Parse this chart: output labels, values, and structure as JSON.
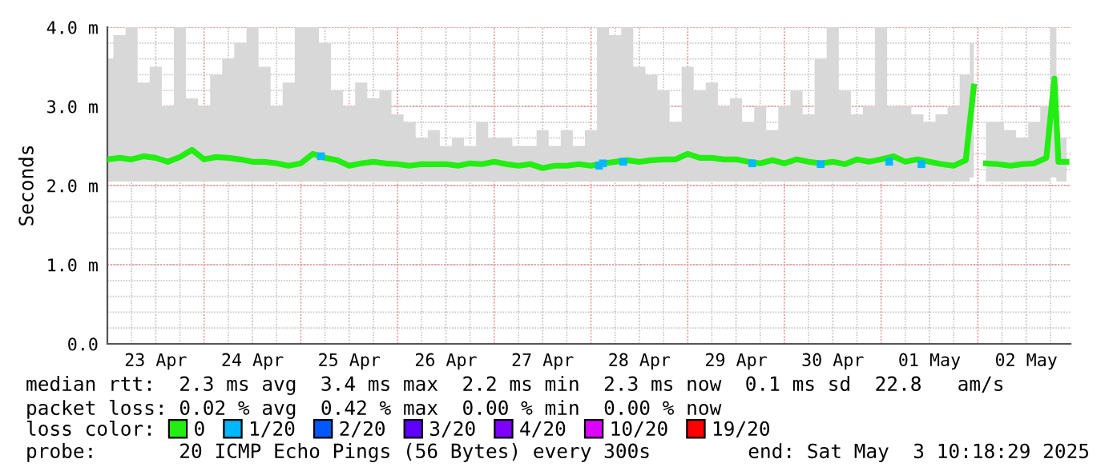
{
  "chart_data": {
    "type": "line",
    "ylabel": "Seconds",
    "legend_title": "loss color:",
    "legend": "bottom",
    "grid": true,
    "line_style": "solid",
    "marker": "none",
    "xlim": [
      "2025-04-23T00:00",
      "2025-05-02T23:00"
    ],
    "xticks": [
      {
        "value": "2025-04-23T00:00",
        "label": null
      },
      {
        "value": "2025-04-23T12:00",
        "label": "23 Apr"
      },
      {
        "value": "2025-04-24T00:00",
        "label": null
      },
      {
        "value": "2025-04-24T12:00",
        "label": "24 Apr"
      },
      {
        "value": "2025-04-25T00:00",
        "label": null
      },
      {
        "value": "2025-04-25T12:00",
        "label": "25 Apr"
      },
      {
        "value": "2025-04-26T00:00",
        "label": null
      },
      {
        "value": "2025-04-26T12:00",
        "label": "26 Apr"
      },
      {
        "value": "2025-04-27T00:00",
        "label": null
      },
      {
        "value": "2025-04-27T12:00",
        "label": "27 Apr"
      },
      {
        "value": "2025-04-28T00:00",
        "label": null
      },
      {
        "value": "2025-04-28T12:00",
        "label": "28 Apr"
      },
      {
        "value": "2025-04-29T00:00",
        "label": null
      },
      {
        "value": "2025-04-29T12:00",
        "label": "29 Apr"
      },
      {
        "value": "2025-04-30T00:00",
        "label": null
      },
      {
        "value": "2025-04-30T12:00",
        "label": "30 Apr"
      },
      {
        "value": "2025-05-01T00:00",
        "label": null
      },
      {
        "value": "2025-05-01T12:00",
        "label": "01 May"
      },
      {
        "value": "2025-05-02T00:00",
        "label": null
      },
      {
        "value": "2025-05-02T12:00",
        "label": "02 May"
      }
    ],
    "ylim": [
      0,
      4.0
    ],
    "yticks": [
      {
        "value": 0,
        "label": "0.0"
      },
      {
        "value": 1,
        "label": "1.0 m"
      },
      {
        "value": 2,
        "label": "2.0 m"
      },
      {
        "value": 3,
        "label": "3.0 m"
      },
      {
        "value": 4,
        "label": "4.0 m"
      }
    ],
    "series": [
      {
        "name": "0",
        "color": "#22ee11",
        "x": [
          "2025-04-23T00:00",
          "2025-04-23T03:00",
          "2025-04-23T06:00",
          "2025-04-23T09:00",
          "2025-04-23T12:00",
          "2025-04-23T15:00",
          "2025-04-23T18:00",
          "2025-04-23T21:00",
          "2025-04-24T00:00",
          "2025-04-24T03:00",
          "2025-04-24T06:00",
          "2025-04-24T09:00",
          "2025-04-24T12:00",
          "2025-04-24T15:00",
          "2025-04-24T18:00",
          "2025-04-24T21:00",
          "2025-04-25T00:00",
          "2025-04-25T03:00",
          "2025-04-25T06:00",
          "2025-04-25T09:00",
          "2025-04-25T12:00",
          "2025-04-25T15:00",
          "2025-04-25T18:00",
          "2025-04-25T21:00",
          "2025-04-26T00:00",
          "2025-04-26T03:00",
          "2025-04-26T06:00",
          "2025-04-26T09:00",
          "2025-04-26T12:00",
          "2025-04-26T15:00",
          "2025-04-26T18:00",
          "2025-04-26T21:00",
          "2025-04-27T00:00",
          "2025-04-27T03:00",
          "2025-04-27T06:00",
          "2025-04-27T09:00",
          "2025-04-27T12:00",
          "2025-04-27T15:00",
          "2025-04-27T18:00",
          "2025-04-27T21:00",
          "2025-04-28T00:00",
          "2025-04-28T03:00",
          "2025-04-28T06:00",
          "2025-04-28T09:00",
          "2025-04-28T12:00",
          "2025-04-28T15:00",
          "2025-04-28T18:00",
          "2025-04-28T21:00",
          "2025-04-29T00:00",
          "2025-04-29T03:00",
          "2025-04-29T06:00",
          "2025-04-29T09:00",
          "2025-04-29T12:00",
          "2025-04-29T15:00",
          "2025-04-29T18:00",
          "2025-04-29T21:00",
          "2025-04-30T00:00",
          "2025-04-30T03:00",
          "2025-04-30T06:00",
          "2025-04-30T09:00",
          "2025-04-30T12:00",
          "2025-04-30T15:00",
          "2025-04-30T18:00",
          "2025-04-30T21:00",
          "2025-05-01T00:00",
          "2025-05-01T03:00",
          "2025-05-01T06:00",
          "2025-05-01T09:00",
          "2025-05-01T12:00",
          "2025-05-01T15:00",
          "2025-05-01T18:00",
          "2025-05-01T21:00",
          "2025-05-01T23:00",
          "2025-05-02T00:00",
          "2025-05-02T02:00",
          "2025-05-02T05:00",
          "2025-05-02T08:00",
          "2025-05-02T11:00",
          "2025-05-02T14:00",
          "2025-05-02T17:00",
          "2025-05-02T19:00",
          "2025-05-02T20:00",
          "2025-05-02T22:00"
        ],
        "values": [
          2.33,
          2.35,
          2.33,
          2.37,
          2.35,
          2.3,
          2.36,
          2.45,
          2.33,
          2.36,
          2.35,
          2.33,
          2.3,
          2.3,
          2.28,
          2.25,
          2.28,
          2.4,
          2.35,
          2.32,
          2.25,
          2.28,
          2.3,
          2.28,
          2.27,
          2.25,
          2.27,
          2.27,
          2.27,
          2.25,
          2.28,
          2.27,
          2.3,
          2.27,
          2.25,
          2.27,
          2.22,
          2.25,
          2.25,
          2.27,
          2.25,
          2.28,
          2.3,
          2.32,
          2.3,
          2.32,
          2.33,
          2.33,
          2.4,
          2.35,
          2.35,
          2.33,
          2.33,
          2.3,
          2.28,
          2.32,
          2.28,
          2.33,
          2.3,
          2.28,
          2.3,
          2.27,
          2.33,
          2.3,
          2.33,
          2.37,
          2.3,
          2.33,
          2.3,
          2.27,
          2.25,
          2.32,
          3.25,
          null,
          2.28,
          2.27,
          2.25,
          2.27,
          2.28,
          2.35,
          3.35,
          2.3,
          2.3
        ],
        "lower": [
          2.05,
          2.05,
          2.05,
          2.05,
          2.05,
          2.05,
          2.05,
          2.05,
          2.05,
          2.05,
          2.05,
          2.05,
          2.05,
          2.05,
          2.05,
          2.05,
          2.05,
          2.05,
          2.05,
          2.05,
          2.05,
          2.05,
          2.05,
          2.05,
          2.05,
          2.05,
          2.05,
          2.05,
          2.05,
          2.05,
          2.05,
          2.05,
          2.05,
          2.05,
          2.05,
          2.05,
          2.05,
          2.05,
          2.05,
          2.05,
          2.05,
          2.05,
          2.05,
          2.05,
          2.05,
          2.05,
          2.05,
          2.05,
          2.05,
          2.05,
          2.05,
          2.05,
          2.05,
          2.05,
          2.05,
          2.05,
          2.05,
          2.05,
          2.05,
          2.05,
          2.05,
          2.05,
          2.05,
          2.05,
          2.05,
          2.05,
          2.05,
          2.05,
          2.05,
          2.05,
          2.05,
          2.05,
          2.1,
          null,
          2.05,
          2.05,
          2.05,
          2.05,
          2.05,
          2.05,
          2.1,
          2.05,
          2.05
        ],
        "upper": [
          3.6,
          3.9,
          4.0,
          3.3,
          3.5,
          3.0,
          4.0,
          3.1,
          3.0,
          3.4,
          3.6,
          3.8,
          4.0,
          3.5,
          3.0,
          3.3,
          4.0,
          4.0,
          3.8,
          3.2,
          3.0,
          3.3,
          3.1,
          3.2,
          2.9,
          2.8,
          2.6,
          2.7,
          2.5,
          2.6,
          2.5,
          2.8,
          2.6,
          2.6,
          2.5,
          2.5,
          2.7,
          2.5,
          2.7,
          2.5,
          2.7,
          4.0,
          3.9,
          4.0,
          3.5,
          3.4,
          3.2,
          2.8,
          3.5,
          3.2,
          3.3,
          3.0,
          3.1,
          2.8,
          3.0,
          2.7,
          3.0,
          3.2,
          2.9,
          3.6,
          4.0,
          3.2,
          2.9,
          3.0,
          4.0,
          3.0,
          3.0,
          2.9,
          2.8,
          2.9,
          3.0,
          3.4,
          3.8,
          null,
          2.8,
          2.8,
          2.7,
          2.6,
          2.8,
          3.0,
          4.0,
          2.6,
          2.6
        ]
      },
      {
        "name": "1/20",
        "type": "scatter",
        "color": "#00b8ff",
        "marker": "square",
        "x": [
          "2025-04-25T05:00",
          "2025-04-28T02:00",
          "2025-04-28T03:00",
          "2025-04-28T08:00",
          "2025-04-29T16:00",
          "2025-04-30T09:00",
          "2025-05-01T02:00",
          "2025-05-01T10:00"
        ],
        "values": [
          2.37,
          2.25,
          2.28,
          2.3,
          2.28,
          2.27,
          2.3,
          2.27
        ]
      },
      {
        "name": "2/20",
        "type": "scatter",
        "color": "#0059ff",
        "marker": "square"
      },
      {
        "name": "3/20",
        "type": "scatter",
        "color": "#5e00ff",
        "marker": "square"
      },
      {
        "name": "4/20",
        "type": "scatter",
        "color": "#7e00ff",
        "marker": "square"
      },
      {
        "name": "10/20",
        "type": "scatter",
        "color": "#dd00ff",
        "marker": "square"
      },
      {
        "name": "19/20",
        "type": "scatter",
        "color": "#ff0000",
        "marker": "square"
      }
    ],
    "annotations": [
      "median rtt:  2.3 ms avg  3.4 ms max  2.2 ms min  2.3 ms now  0.1 ms sd  22.8   am/s",
      "packet loss: 0.02 % avg  0.42 % max  0.00 % min  0.00 % now",
      "probe:       20 ICMP Echo Pings (56 Bytes) every 300s",
      "end: Sat May  3 10:18:29 2025"
    ]
  }
}
